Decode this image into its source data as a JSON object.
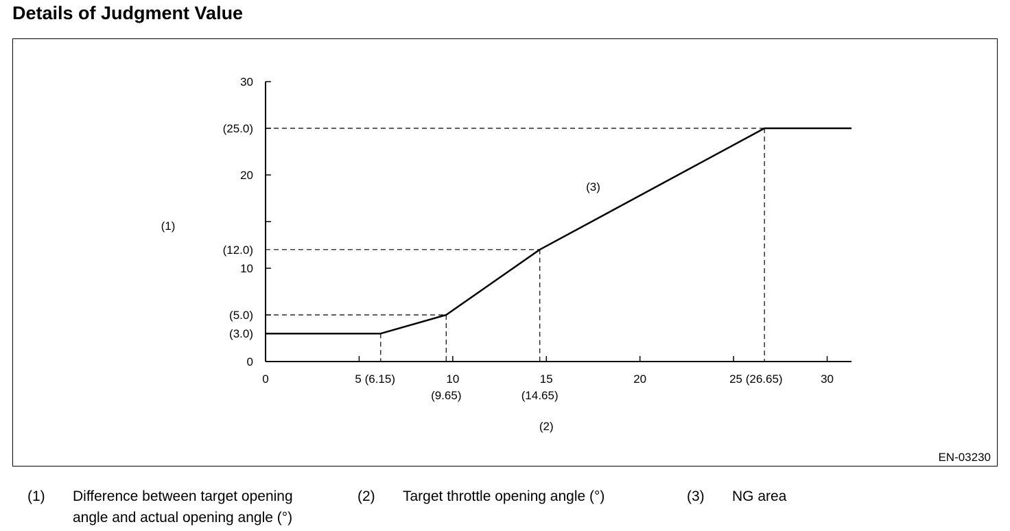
{
  "page": {
    "title": "Details of Judgment Value",
    "figure_id": "EN-03230"
  },
  "chart_data": {
    "type": "line",
    "title": "",
    "xlabel": "(2)",
    "ylabel": "(1)",
    "xlim": [
      0,
      31.3
    ],
    "ylim": [
      0,
      30
    ],
    "x_ticks": [
      {
        "value": 0,
        "label": "0"
      },
      {
        "value": 5,
        "label": "5 (6.15)"
      },
      {
        "value": 10,
        "label": "10"
      },
      {
        "value": 15,
        "label": "15"
      },
      {
        "value": 20,
        "label": "20"
      },
      {
        "value": 25,
        "label": "25 (26.65)"
      },
      {
        "value": 30,
        "label": "30"
      }
    ],
    "x_sub_labels": [
      {
        "value": 9.65,
        "label": "(9.65)"
      },
      {
        "value": 14.65,
        "label": "(14.65)"
      }
    ],
    "y_ticks": [
      {
        "value": 0,
        "label": "0"
      },
      {
        "value": 5,
        "label": ""
      },
      {
        "value": 10,
        "label": "10"
      },
      {
        "value": 15,
        "label": ""
      },
      {
        "value": 20,
        "label": "20"
      },
      {
        "value": 25,
        "label": ""
      },
      {
        "value": 30,
        "label": "30"
      }
    ],
    "y_marker_labels": [
      {
        "value": 3.0,
        "label": "(3.0)"
      },
      {
        "value": 5.0,
        "label": "(5.0)"
      },
      {
        "value": 12.0,
        "label": "(12.0)"
      },
      {
        "value": 25.0,
        "label": "(25.0)"
      }
    ],
    "series": [
      {
        "x": [
          0,
          6.15,
          9.65,
          14.65,
          26.65,
          31.3
        ],
        "y": [
          3.0,
          3.0,
          5.0,
          12.0,
          25.0,
          25.0
        ]
      }
    ],
    "reference_lines": [
      {
        "x": 6.15,
        "y": 3.0
      },
      {
        "x": 9.65,
        "y": 5.0
      },
      {
        "x": 14.65,
        "y": 12.0
      },
      {
        "x": 26.65,
        "y": 25.0
      }
    ],
    "region_label": {
      "x": 17.5,
      "y": 18.3,
      "label": "(3)"
    },
    "grid": false
  },
  "legend": [
    {
      "number": "(1)",
      "lines": [
        "Difference between target opening",
        "angle and actual opening angle (°)"
      ]
    },
    {
      "number": "(2)",
      "lines": [
        "Target throttle opening angle (°)"
      ]
    },
    {
      "number": "(3)",
      "lines": [
        "NG area"
      ]
    }
  ]
}
